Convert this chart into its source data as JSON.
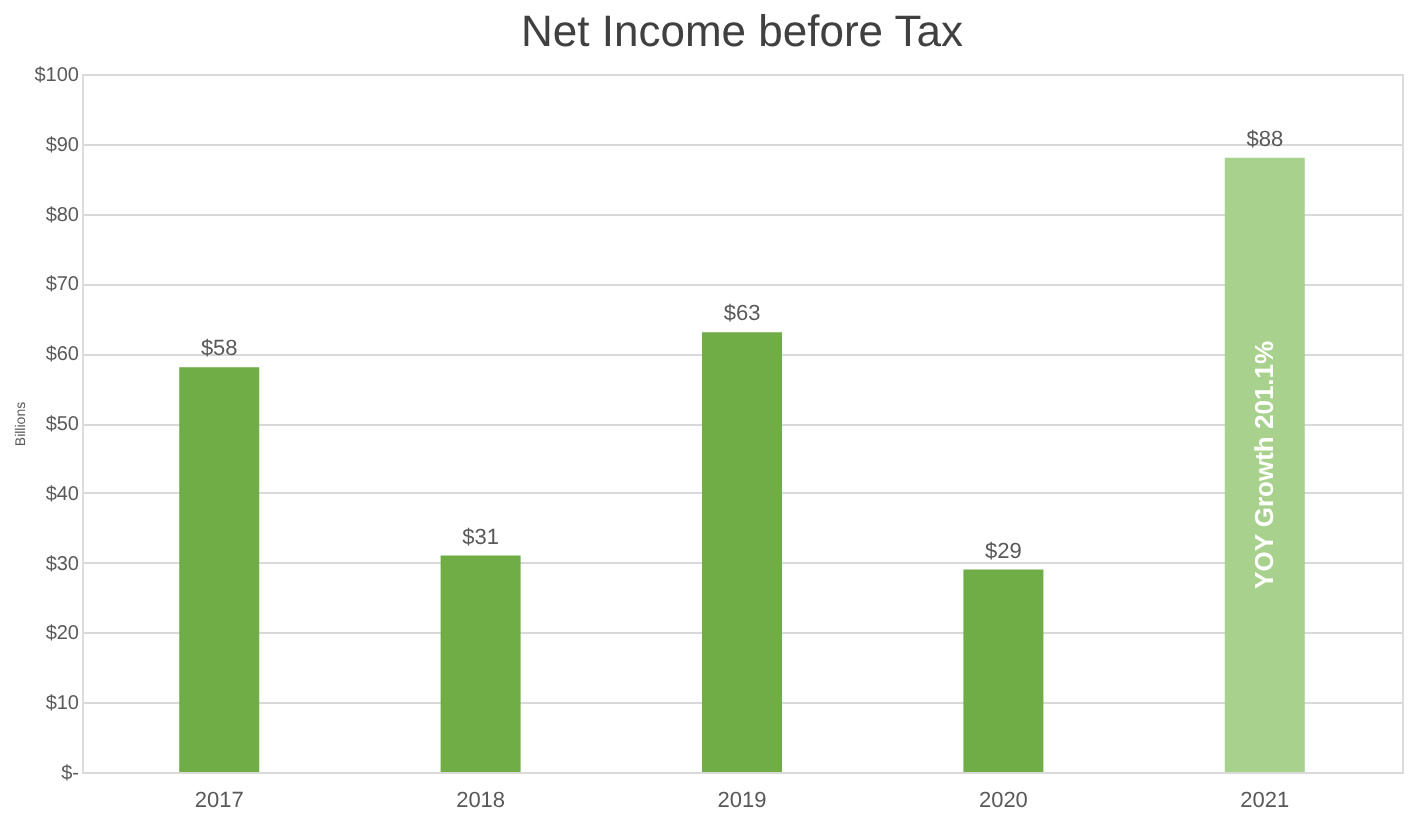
{
  "chart_data": {
    "type": "bar",
    "title": "Net Income before Tax",
    "ylabel": "Billions",
    "categories": [
      "2017",
      "2018",
      "2019",
      "2020",
      "2021"
    ],
    "values": [
      58,
      31,
      63,
      29,
      88
    ],
    "colors": [
      "#70ad47",
      "#70ad47",
      "#70ad47",
      "#70ad47",
      "#a9d18e"
    ],
    "value_labels": [
      "$58",
      "$31",
      "$63",
      "$29",
      "$88"
    ],
    "ylim": [
      0,
      100
    ],
    "yticks": [
      {
        "value": 0,
        "label": "$-"
      },
      {
        "value": 10,
        "label": "$10"
      },
      {
        "value": 20,
        "label": "$20"
      },
      {
        "value": 30,
        "label": "$30"
      },
      {
        "value": 40,
        "label": "$40"
      },
      {
        "value": 50,
        "label": "$50"
      },
      {
        "value": 60,
        "label": "$60"
      },
      {
        "value": 70,
        "label": "$70"
      },
      {
        "value": 80,
        "label": "$80"
      },
      {
        "value": 90,
        "label": "$90"
      },
      {
        "value": 100,
        "label": "$100"
      }
    ],
    "grid": "y",
    "annotations": [
      "YOY Growth 201.1%"
    ]
  }
}
